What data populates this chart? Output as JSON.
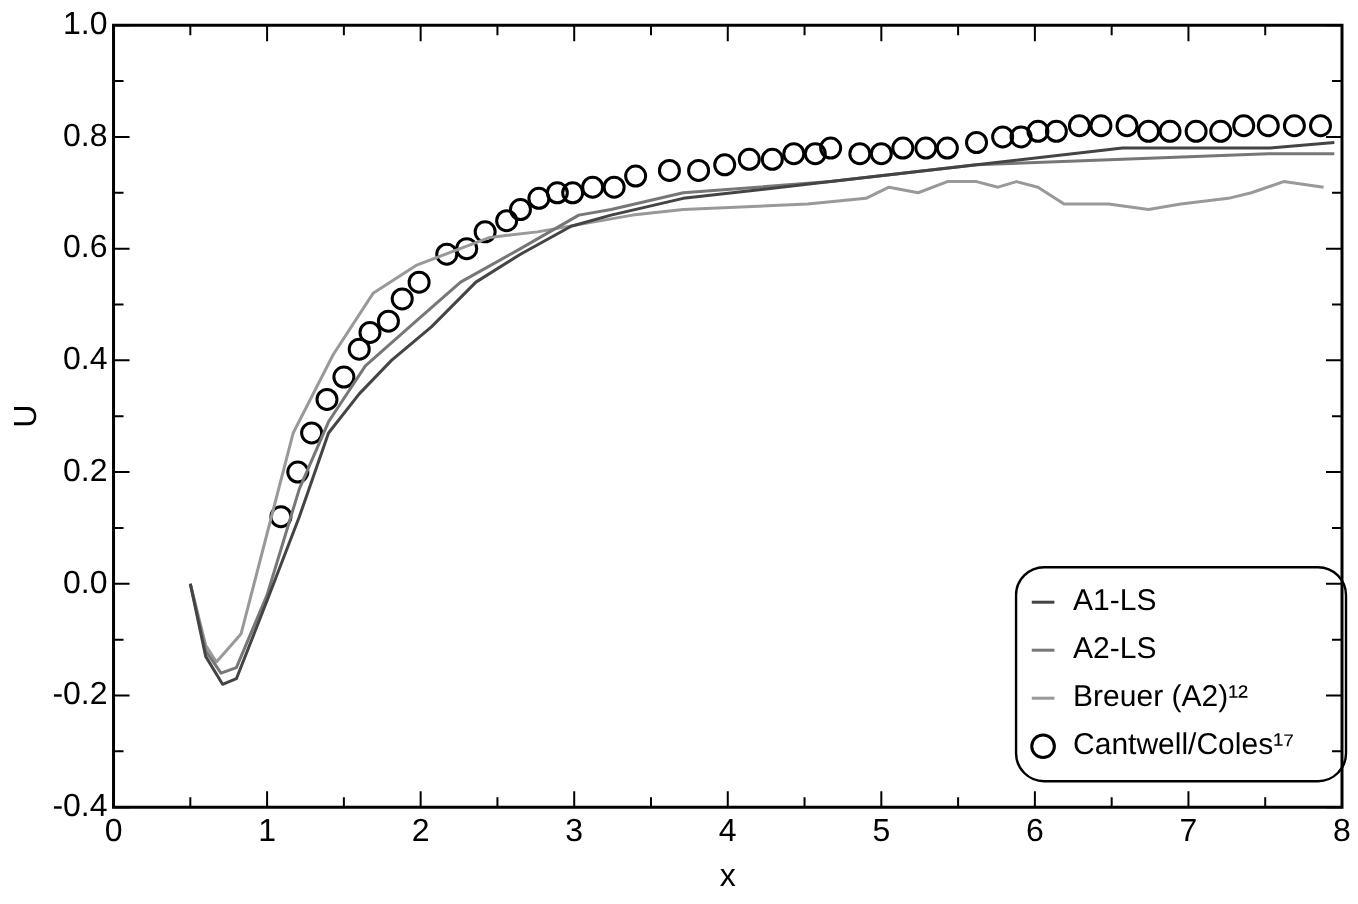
{
  "chart_data": {
    "type": "line",
    "xlabel": "x",
    "ylabel": "U",
    "xlim": [
      0,
      8
    ],
    "ylim": [
      -0.4,
      1.0
    ],
    "xticks": [
      0,
      {
        "value": 0.5,
        "label": null
      },
      1,
      {
        "value": 1.5,
        "label": null
      },
      2,
      {
        "value": 2.5,
        "label": null
      },
      3,
      {
        "value": 3.5,
        "label": null
      },
      4,
      {
        "value": 4.5,
        "label": null
      },
      5,
      {
        "value": 5.5,
        "label": null
      },
      6,
      {
        "value": 6.5,
        "label": null
      },
      7,
      {
        "value": 7.5,
        "label": null
      },
      8
    ],
    "yticks": [
      {
        "value": -0.4,
        "label": "-0.4"
      },
      {
        "value": -0.3,
        "label": null
      },
      {
        "value": -0.2,
        "label": "-0.2"
      },
      {
        "value": -0.1,
        "label": null
      },
      {
        "value": 0,
        "label": "0.0"
      },
      {
        "value": 0.1,
        "label": null
      },
      {
        "value": 0.2,
        "label": "0.2"
      },
      {
        "value": 0.3,
        "label": null
      },
      {
        "value": 0.4,
        "label": "0.4"
      },
      {
        "value": 0.5,
        "label": null
      },
      {
        "value": 0.6,
        "label": "0.6"
      },
      {
        "value": 0.7,
        "label": null
      },
      {
        "value": 0.8,
        "label": "0.8"
      },
      {
        "value": 0.9,
        "label": null
      },
      {
        "value": 1.0,
        "label": "1.0"
      }
    ],
    "grid": false,
    "legend": "bottom right",
    "line_style": "solid",
    "series": [
      {
        "name": "A1-LS",
        "color": "#444444",
        "marker": "none",
        "x": [
          0.5,
          0.6,
          0.71,
          0.8,
          1.0,
          1.21,
          1.4,
          1.6,
          1.81,
          2.07,
          2.36,
          2.65,
          2.98,
          3.24,
          3.71,
          4.67,
          5.62,
          6.57,
          7.52,
          7.95
        ],
        "values": [
          0,
          -0.13,
          -0.18,
          -0.17,
          -0.03,
          0.12,
          0.27,
          0.34,
          0.4,
          0.46,
          0.54,
          0.59,
          0.64,
          0.66,
          0.69,
          0.72,
          0.75,
          0.78,
          0.78,
          0.79
        ]
      },
      {
        "name": "A2-LS",
        "color": "#777777",
        "marker": "none",
        "x": [
          0.5,
          0.6,
          0.7,
          0.8,
          1.0,
          1.21,
          1.4,
          1.64,
          1.97,
          2.26,
          2.65,
          3.03,
          3.24,
          3.71,
          4.67,
          5.62,
          6.57,
          7.52,
          7.95
        ],
        "values": [
          0,
          -0.12,
          -0.16,
          -0.15,
          -0.02,
          0.17,
          0.29,
          0.39,
          0.47,
          0.54,
          0.6,
          0.66,
          0.67,
          0.7,
          0.72,
          0.75,
          0.76,
          0.77,
          0.77
        ]
      },
      {
        "name": "Breuer (A2)¹²",
        "color": "#999999",
        "marker": "none",
        "x": [
          0.5,
          0.6,
          0.67,
          0.83,
          1.0,
          1.17,
          1.43,
          1.69,
          1.97,
          2.45,
          2.76,
          3.38,
          3.71,
          4.52,
          4.9,
          5.05,
          5.24,
          5.43,
          5.62,
          5.76,
          5.88,
          6.02,
          6.19,
          6.48,
          6.74,
          6.95,
          7.26,
          7.41,
          7.62,
          7.88
        ],
        "values": [
          0,
          -0.11,
          -0.14,
          -0.09,
          0.09,
          0.27,
          0.41,
          0.52,
          0.57,
          0.62,
          0.63,
          0.66,
          0.67,
          0.68,
          0.69,
          0.71,
          0.7,
          0.72,
          0.72,
          0.71,
          0.72,
          0.71,
          0.68,
          0.68,
          0.67,
          0.68,
          0.69,
          0.7,
          0.72,
          0.71
        ]
      },
      {
        "name": "Cantwell/Coles¹⁷",
        "type": "scatter",
        "color": "#000000",
        "marker": "circle",
        "x": [
          1.09,
          1.2,
          1.29,
          1.39,
          1.5,
          1.6,
          1.67,
          1.79,
          1.88,
          1.99,
          2.17,
          2.3,
          2.42,
          2.56,
          2.65,
          2.77,
          2.89,
          2.99,
          3.12,
          3.26,
          3.4,
          3.62,
          3.81,
          3.98,
          4.14,
          4.29,
          4.43,
          4.57,
          4.67,
          4.86,
          5.0,
          5.14,
          5.29,
          5.43,
          5.62,
          5.79,
          5.91,
          6.02,
          6.14,
          6.29,
          6.43,
          6.6,
          6.74,
          6.88,
          7.05,
          7.21,
          7.36,
          7.52,
          7.69,
          7.86
        ],
        "values": [
          0.12,
          0.2,
          0.27,
          0.33,
          0.37,
          0.42,
          0.45,
          0.47,
          0.51,
          0.54,
          0.59,
          0.6,
          0.63,
          0.65,
          0.67,
          0.69,
          0.7,
          0.7,
          0.71,
          0.71,
          0.73,
          0.74,
          0.74,
          0.75,
          0.76,
          0.76,
          0.77,
          0.77,
          0.78,
          0.77,
          0.77,
          0.78,
          0.78,
          0.78,
          0.79,
          0.8,
          0.8,
          0.81,
          0.81,
          0.82,
          0.82,
          0.82,
          0.81,
          0.81,
          0.81,
          0.81,
          0.82,
          0.82,
          0.82,
          0.82
        ]
      }
    ]
  }
}
